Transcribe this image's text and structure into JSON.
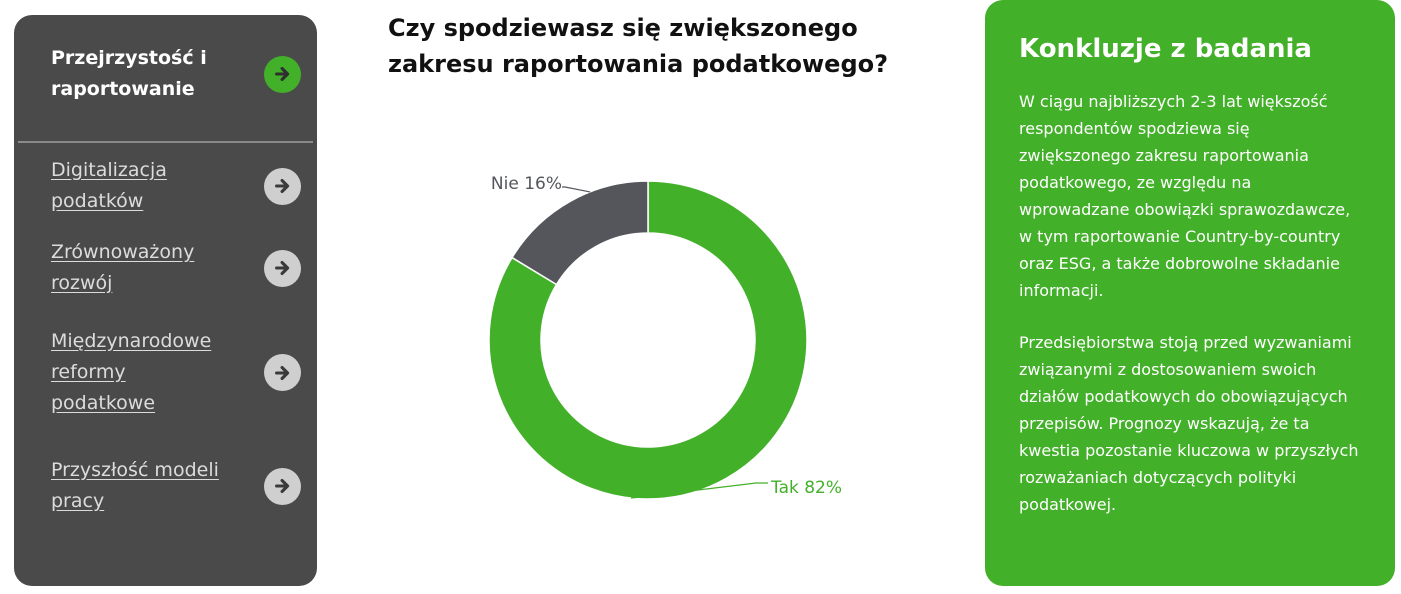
{
  "sidebar": {
    "items": [
      {
        "label": "Przejrzystość i raportowanie",
        "active": true
      },
      {
        "label": "Digitalizacja podatków",
        "active": false
      },
      {
        "label": "Zrównoważony rozwój",
        "active": false
      },
      {
        "label": "Międzynarodowe reformy podatkowe",
        "active": false
      },
      {
        "label": "Przyszłość modeli pracy",
        "active": false
      }
    ],
    "icon": "arrow-right-icon"
  },
  "main": {
    "question": "Czy spodziewasz się zwiększonego zakresu raportowania podatkowego?"
  },
  "chart_data": {
    "type": "pie",
    "donut": true,
    "slices": [
      {
        "label": "Tak 82%",
        "value": 82,
        "color": "#43b02a"
      },
      {
        "label": "Nie 16%",
        "value": 16,
        "color": "#54565b"
      }
    ]
  },
  "panel": {
    "title": "Konkluzje z badania",
    "paragraph1": "W ciągu najbliższych 2-3 lat większość respondentów spodziewa się zwiększonego zakresu raportowania podatkowego, ze względu na wprowadzane obowiązki sprawozdawcze, w tym raportowanie Country-by-country oraz ESG, a także dobrowolne składanie informacji.",
    "paragraph2": "Przedsiębiorstwa stoją przed wyzwaniami związanymi z dostosowaniem swoich działów podatkowych do obowiązujących przepisów. Prognozy wskazują, że ta kwestia pozostanie kluczowa w przyszłych rozważaniach dotyczących polityki podatkowej."
  },
  "colors": {
    "accent": "#43b02a",
    "sidebar_bg": "#4a4a4a",
    "no_slice": "#54565b"
  }
}
